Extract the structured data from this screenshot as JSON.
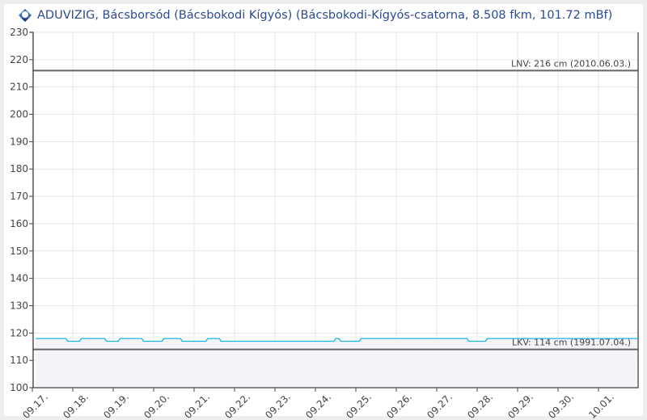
{
  "header": {
    "icon": "aduvizig-logo-icon",
    "title": "ADUVIZIG, Bácsborsód  (Bácsbokodi Kígyós) (Bácsbokodi-Kígyós-csatorna, 8.508 fkm, 101.72 mBf)"
  },
  "chart_data": {
    "type": "line",
    "title": "",
    "xlabel": "",
    "ylabel": "",
    "ylim": [
      100,
      230
    ],
    "yticks": [
      100,
      110,
      120,
      130,
      140,
      150,
      160,
      170,
      180,
      190,
      200,
      210,
      220,
      230
    ],
    "xlim": [
      "09.17 00:00",
      "10.01 24:00"
    ],
    "xticks": [
      "09.17.",
      "09.18.",
      "09.19.",
      "09.20.",
      "09.21.",
      "09.22.",
      "09.23.",
      "09.24.",
      "09.25.",
      "09.26.",
      "09.27.",
      "09.28.",
      "09.29.",
      "09.30.",
      "10.01."
    ],
    "grid": true,
    "area_fill": true,
    "colors": {
      "series": "#1ab4e6",
      "area": "#f3f4f8",
      "reference": "#666666",
      "grid": "#e6e6e6"
    },
    "series": [
      {
        "points": [
          [
            "09.17 02:00",
            118
          ],
          [
            "09.17 20:00",
            118
          ],
          [
            "09.17 21:00",
            117
          ],
          [
            "09.18 04:00",
            117
          ],
          [
            "09.18 05:00",
            118
          ],
          [
            "09.18 19:00",
            118
          ],
          [
            "09.18 20:00",
            117
          ],
          [
            "09.19 03:00",
            117
          ],
          [
            "09.19 04:00",
            118
          ],
          [
            "09.19 17:00",
            118
          ],
          [
            "09.19 18:00",
            117
          ],
          [
            "09.20 05:00",
            117
          ],
          [
            "09.20 06:00",
            118
          ],
          [
            "09.20 16:00",
            118
          ],
          [
            "09.20 17:00",
            117
          ],
          [
            "09.21 07:00",
            117
          ],
          [
            "09.21 08:00",
            118
          ],
          [
            "09.21 15:00",
            118
          ],
          [
            "09.21 16:00",
            117
          ],
          [
            "09.24 11:00",
            117
          ],
          [
            "09.24 12:00",
            118
          ],
          [
            "09.24 14:00",
            118
          ],
          [
            "09.24 15:00",
            117
          ],
          [
            "09.25 02:00",
            117
          ],
          [
            "09.25 03:00",
            118
          ],
          [
            "09.27 18:00",
            118
          ],
          [
            "09.27 19:00",
            117
          ],
          [
            "09.28 05:00",
            117
          ],
          [
            "09.28 06:00",
            118
          ],
          [
            "10.01 23:00",
            118
          ]
        ]
      }
    ],
    "reference_lines": [
      {
        "label": "LNV: 216 cm (2010.06.03.)",
        "value": 216
      },
      {
        "label": "LKV: 114 cm (1991.07.04.)",
        "value": 114
      }
    ]
  }
}
